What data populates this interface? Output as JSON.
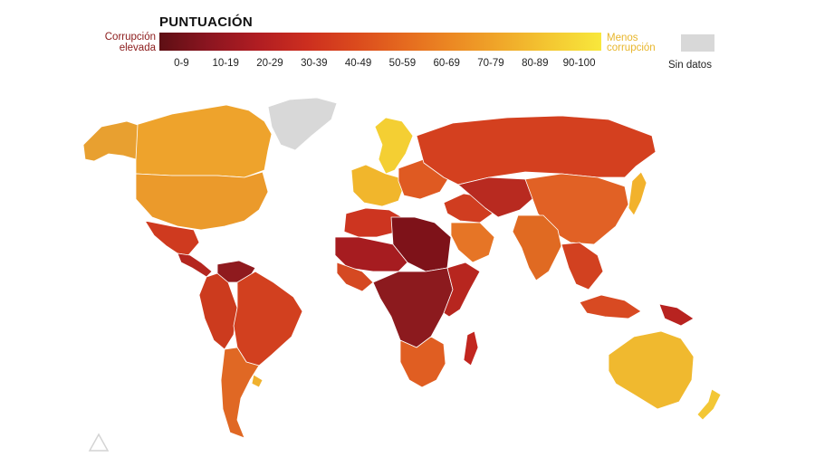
{
  "legend": {
    "title": "PUNTUACIÓN",
    "low_label": "Corrupción elevada",
    "high_label": "Menos corrupción",
    "no_data_label": "Sin datos",
    "no_data_color": "#d8d8d8",
    "bins": [
      {
        "label": "0-9",
        "color": "#5e0f14"
      },
      {
        "label": "10-19",
        "color": "#8b1520"
      },
      {
        "label": "20-29",
        "color": "#b01d22"
      },
      {
        "label": "30-39",
        "color": "#cc2e1f"
      },
      {
        "label": "40-49",
        "color": "#db4a1d"
      },
      {
        "label": "50-59",
        "color": "#e56a1f"
      },
      {
        "label": "60-69",
        "color": "#ec8a23"
      },
      {
        "label": "70-79",
        "color": "#f0a92a"
      },
      {
        "label": "80-89",
        "color": "#f4c932"
      },
      {
        "label": "90-100",
        "color": "#f8e83c"
      }
    ]
  },
  "map": {
    "regions": [
      {
        "name": "canada",
        "score_bin": "70-79",
        "color": "#eea32c"
      },
      {
        "name": "alaska",
        "score_bin": "60-69",
        "color": "#e8a030"
      },
      {
        "name": "greenland",
        "score_bin": "sin-datos",
        "color": "#d8d8d8"
      },
      {
        "name": "united-states",
        "score_bin": "60-69",
        "color": "#eb9a2b"
      },
      {
        "name": "mexico",
        "score_bin": "30-39",
        "color": "#cf3a1f"
      },
      {
        "name": "central-america",
        "score_bin": "20-29",
        "color": "#b4261f"
      },
      {
        "name": "south-america-north",
        "score_bin": "30-39",
        "color": "#cc3b1e"
      },
      {
        "name": "venezuela",
        "score_bin": "10-19",
        "color": "#8f1a1e"
      },
      {
        "name": "brazil",
        "score_bin": "30-39",
        "color": "#d2401f"
      },
      {
        "name": "south-america-south",
        "score_bin": "50-59",
        "color": "#e06824"
      },
      {
        "name": "uruguay",
        "score_bin": "70-79",
        "color": "#f0b12e"
      },
      {
        "name": "scandinavia",
        "score_bin": "80-89",
        "color": "#f4cf33"
      },
      {
        "name": "western-europe",
        "score_bin": "70-79",
        "color": "#f1b62c"
      },
      {
        "name": "eastern-europe",
        "score_bin": "40-49",
        "color": "#df5a22"
      },
      {
        "name": "russia",
        "score_bin": "20-29",
        "color": "#d4401f"
      },
      {
        "name": "north-africa",
        "score_bin": "30-39",
        "color": "#cd3520"
      },
      {
        "name": "sahel",
        "score_bin": "10-19",
        "color": "#a61c20"
      },
      {
        "name": "west-africa",
        "score_bin": "30-39",
        "color": "#d54922"
      },
      {
        "name": "libya-sudan",
        "score_bin": "0-9",
        "color": "#7e1219"
      },
      {
        "name": "central-africa",
        "score_bin": "10-19",
        "color": "#8c1a1e"
      },
      {
        "name": "east-africa",
        "score_bin": "20-29",
        "color": "#b7261f"
      },
      {
        "name": "southern-africa",
        "score_bin": "40-49",
        "color": "#e05e22"
      },
      {
        "name": "madagascar",
        "score_bin": "20-29",
        "color": "#c2261f"
      },
      {
        "name": "middle-east",
        "score_bin": "30-39",
        "color": "#d03d20"
      },
      {
        "name": "arabia",
        "score_bin": "50-59",
        "color": "#e67526"
      },
      {
        "name": "central-asia",
        "score_bin": "20-29",
        "color": "#b82a20"
      },
      {
        "name": "china",
        "score_bin": "40-49",
        "color": "#e16125"
      },
      {
        "name": "india",
        "score_bin": "40-49",
        "color": "#e06a22"
      },
      {
        "name": "southeast-asia",
        "score_bin": "30-39",
        "color": "#d24120"
      },
      {
        "name": "japan",
        "score_bin": "70-79",
        "color": "#f2b22c"
      },
      {
        "name": "indonesia",
        "score_bin": "30-39",
        "color": "#d84a22"
      },
      {
        "name": "papua",
        "score_bin": "20-29",
        "color": "#b82320"
      },
      {
        "name": "australia",
        "score_bin": "70-79",
        "color": "#f0b92f"
      },
      {
        "name": "new-zealand",
        "score_bin": "80-89",
        "color": "#f3c735"
      }
    ]
  }
}
